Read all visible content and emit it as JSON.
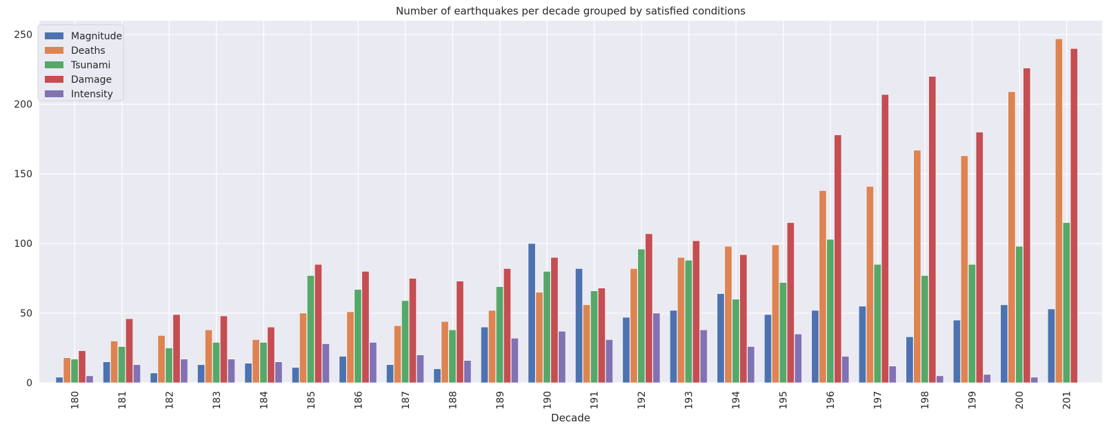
{
  "chart_data": {
    "type": "bar",
    "title": "Number of earthquakes per decade grouped by satisfied conditions",
    "xlabel": "Decade",
    "ylabel": "",
    "ylim": [
      0,
      260
    ],
    "yticks": [
      0,
      50,
      100,
      150,
      200,
      250
    ],
    "grid": true,
    "legend_position": "top-left",
    "categories": [
      "180",
      "181",
      "182",
      "183",
      "184",
      "185",
      "186",
      "187",
      "188",
      "189",
      "190",
      "191",
      "192",
      "193",
      "194",
      "195",
      "196",
      "197",
      "198",
      "199",
      "200",
      "201"
    ],
    "series": [
      {
        "name": "Magnitude",
        "color": "#4c72b0",
        "values": [
          4,
          15,
          7,
          13,
          14,
          11,
          19,
          13,
          10,
          40,
          100,
          82,
          47,
          52,
          64,
          49,
          52,
          55,
          33,
          45,
          56,
          53
        ]
      },
      {
        "name": "Deaths",
        "color": "#dd8452",
        "values": [
          18,
          30,
          34,
          38,
          31,
          50,
          51,
          41,
          44,
          52,
          65,
          56,
          82,
          90,
          98,
          99,
          138,
          141,
          167,
          163,
          209,
          247
        ]
      },
      {
        "name": "Tsunami",
        "color": "#55a868",
        "values": [
          17,
          26,
          25,
          29,
          29,
          77,
          67,
          59,
          38,
          69,
          80,
          66,
          96,
          88,
          60,
          72,
          103,
          85,
          77,
          85,
          98,
          115
        ]
      },
      {
        "name": "Damage",
        "color": "#c44e52",
        "values": [
          23,
          46,
          49,
          48,
          40,
          85,
          80,
          75,
          73,
          82,
          90,
          68,
          107,
          102,
          92,
          115,
          178,
          207,
          220,
          180,
          226,
          240
        ]
      },
      {
        "name": "Intensity",
        "color": "#8172b3",
        "values": [
          5,
          13,
          17,
          17,
          15,
          28,
          29,
          20,
          16,
          32,
          37,
          31,
          50,
          38,
          26,
          35,
          19,
          12,
          5,
          6,
          4,
          null
        ]
      }
    ]
  }
}
